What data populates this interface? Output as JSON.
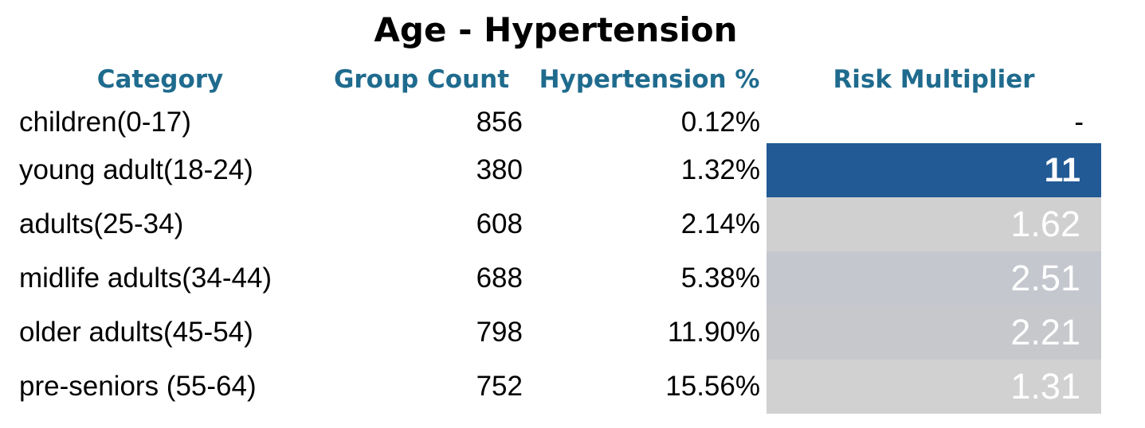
{
  "table": {
    "title": "Age - Hypertension",
    "headers": {
      "category": "Category",
      "group_count": "Group Count",
      "hypertension_pct": "Hypertension %",
      "risk_multiplier": "Risk Multiplier"
    },
    "rows": [
      {
        "category": "children(0-17)",
        "group_count": "856",
        "hypertension_pct": "0.12%",
        "risk_multiplier": "-",
        "fill": "#ffffff",
        "text_color": "#000000"
      },
      {
        "category": "young adult(18-24)",
        "group_count": "380",
        "hypertension_pct": "1.32%",
        "risk_multiplier": "11",
        "fill": "#215a94",
        "text_color": "#ffffff"
      },
      {
        "category": "adults(25-34)",
        "group_count": "608",
        "hypertension_pct": "2.14%",
        "risk_multiplier": "1.62",
        "fill": "#d0d0d0",
        "text_color": "#ffffff"
      },
      {
        "category": "midlife adults(34-44)",
        "group_count": "688",
        "hypertension_pct": "5.38%",
        "risk_multiplier": "2.51",
        "fill": "#c4c7ce",
        "text_color": "#ffffff"
      },
      {
        "category": "older adults(45-54)",
        "group_count": "798",
        "hypertension_pct": "11.90%",
        "risk_multiplier": "2.21",
        "fill": "#c6c8cc",
        "text_color": "#ffffff"
      },
      {
        "category": "pre-seniors (55-64)",
        "group_count": "752",
        "hypertension_pct": "15.56%",
        "risk_multiplier": "1.31",
        "fill": "#d1d1d1",
        "text_color": "#ffffff"
      }
    ]
  },
  "colors": {
    "header_text": "#1f6b8e",
    "highlight": "#215a94"
  },
  "chart_data": {
    "type": "table",
    "title": "Age - Hypertension",
    "columns": [
      "Category",
      "Group Count",
      "Hypertension %",
      "Risk Multiplier"
    ],
    "rows": [
      [
        "children(0-17)",
        856,
        "0.12%",
        "-"
      ],
      [
        "young adult(18-24)",
        380,
        "1.32%",
        11
      ],
      [
        "adults(25-34)",
        608,
        "2.14%",
        1.62
      ],
      [
        "midlife adults(34-44)",
        688,
        "5.38%",
        2.51
      ],
      [
        "older adults(45-54)",
        798,
        "11.90%",
        2.21
      ],
      [
        "pre-seniors (55-64)",
        752,
        "15.56%",
        1.31
      ]
    ]
  }
}
